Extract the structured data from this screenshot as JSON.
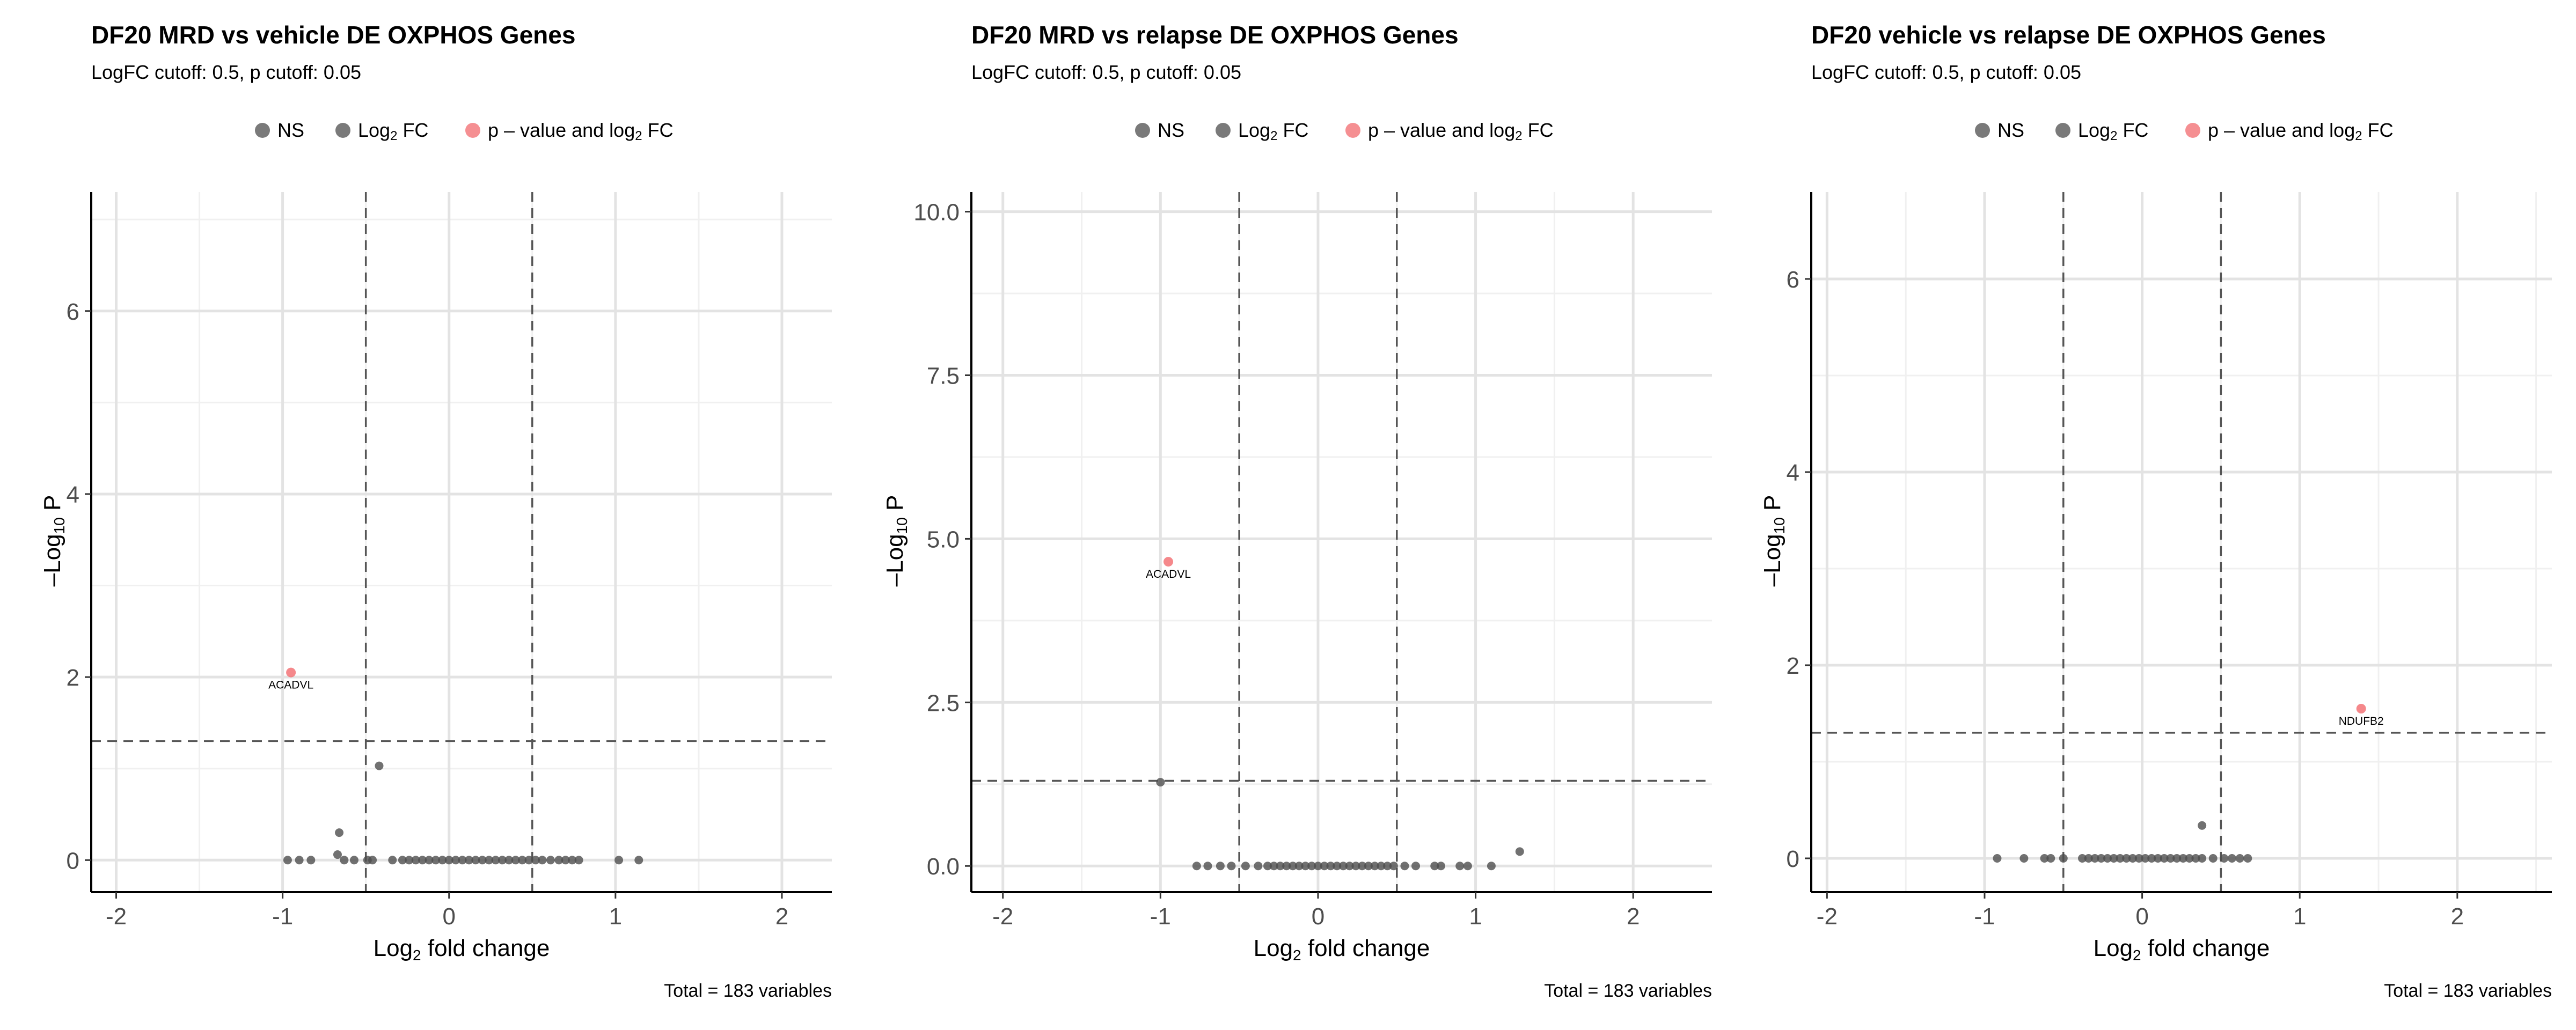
{
  "legend_items": [
    {
      "label": "NS",
      "color": "#4d4d4d"
    },
    {
      "label_prefix": "Log",
      "label_sub": "2",
      "label_suffix": " FC",
      "color": "#4d4d4d"
    },
    {
      "label_prefix": "p – value and log",
      "label_sub": "2",
      "label_suffix": " FC",
      "color": "#f26a6e"
    }
  ],
  "axis_labels": {
    "x_prefix": "Log",
    "x_sub": "2",
    "x_suffix": " fold change",
    "y_prefix": "–Log",
    "y_sub": "10",
    "y_suffix": " P"
  },
  "chart_data": [
    {
      "type": "scatter",
      "title": "DF20 MRD vs vehicle DE OXPHOS Genes",
      "subtitle": "LogFC cutoff: 0.5, p cutoff: 0.05",
      "caption": "Total = 183 variables",
      "xlim": [
        -2.15,
        2.3
      ],
      "ylim": [
        -0.35,
        7.3
      ],
      "xticks": [
        -2,
        -1,
        0,
        1,
        2
      ],
      "xtick_labels": [
        "-2",
        "-1",
        "0",
        "1",
        "2"
      ],
      "yticks": [
        0,
        2,
        4,
        6
      ],
      "ytick_labels": [
        "0",
        "2",
        "4",
        "6"
      ],
      "fc_cutoff": 0.5,
      "p_cutoff_neglog10": 1.301,
      "grid": true,
      "legend_position": "top",
      "points": [
        {
          "x": -0.95,
          "y": 2.05,
          "cls": "sig",
          "label": "ACADVL"
        },
        {
          "x": -0.42,
          "y": 1.03,
          "cls": "ns"
        },
        {
          "x": -0.66,
          "y": 0.3,
          "cls": "ns"
        },
        {
          "x": -0.67,
          "y": 0.06,
          "cls": "ns"
        },
        {
          "x": -0.97,
          "y": 0,
          "cls": "ns"
        },
        {
          "x": -0.9,
          "y": 0,
          "cls": "ns"
        },
        {
          "x": -0.83,
          "y": 0,
          "cls": "ns"
        },
        {
          "x": -0.63,
          "y": 0,
          "cls": "ns"
        },
        {
          "x": -0.57,
          "y": 0,
          "cls": "ns"
        },
        {
          "x": -0.49,
          "y": 0,
          "cls": "ns"
        },
        {
          "x": -0.46,
          "y": 0,
          "cls": "ns"
        },
        {
          "x": -0.34,
          "y": 0,
          "cls": "ns"
        },
        {
          "x": -0.28,
          "y": 0,
          "cls": "ns"
        },
        {
          "x": -0.24,
          "y": 0,
          "cls": "ns"
        },
        {
          "x": -0.2,
          "y": 0,
          "cls": "ns"
        },
        {
          "x": -0.16,
          "y": 0,
          "cls": "ns"
        },
        {
          "x": -0.12,
          "y": 0,
          "cls": "ns"
        },
        {
          "x": -0.08,
          "y": 0,
          "cls": "ns"
        },
        {
          "x": -0.04,
          "y": 0,
          "cls": "ns"
        },
        {
          "x": 0,
          "y": 0,
          "cls": "ns"
        },
        {
          "x": 0.04,
          "y": 0,
          "cls": "ns"
        },
        {
          "x": 0.08,
          "y": 0,
          "cls": "ns"
        },
        {
          "x": 0.12,
          "y": 0,
          "cls": "ns"
        },
        {
          "x": 0.16,
          "y": 0,
          "cls": "ns"
        },
        {
          "x": 0.2,
          "y": 0,
          "cls": "ns"
        },
        {
          "x": 0.24,
          "y": 0,
          "cls": "ns"
        },
        {
          "x": 0.28,
          "y": 0,
          "cls": "ns"
        },
        {
          "x": 0.32,
          "y": 0,
          "cls": "ns"
        },
        {
          "x": 0.36,
          "y": 0,
          "cls": "ns"
        },
        {
          "x": 0.4,
          "y": 0,
          "cls": "ns"
        },
        {
          "x": 0.44,
          "y": 0,
          "cls": "ns"
        },
        {
          "x": 0.48,
          "y": 0,
          "cls": "ns"
        },
        {
          "x": 0.52,
          "y": 0,
          "cls": "ns"
        },
        {
          "x": 0.56,
          "y": 0,
          "cls": "ns"
        },
        {
          "x": 0.61,
          "y": 0,
          "cls": "ns"
        },
        {
          "x": 0.66,
          "y": 0,
          "cls": "ns"
        },
        {
          "x": 0.7,
          "y": 0,
          "cls": "ns"
        },
        {
          "x": 0.74,
          "y": 0,
          "cls": "ns"
        },
        {
          "x": 0.78,
          "y": 0,
          "cls": "ns"
        },
        {
          "x": 1.02,
          "y": 0,
          "cls": "ns"
        },
        {
          "x": 1.14,
          "y": 0,
          "cls": "ns"
        }
      ]
    },
    {
      "type": "scatter",
      "title": "DF20 MRD vs relapse DE OXPHOS Genes",
      "subtitle": "LogFC cutoff: 0.5, p cutoff: 0.05",
      "caption": "Total = 183 variables",
      "xlim": [
        -2.2,
        2.5
      ],
      "ylim": [
        -0.4,
        10.3
      ],
      "xticks": [
        -2,
        -1,
        0,
        1,
        2
      ],
      "xtick_labels": [
        "-2",
        "-1",
        "0",
        "1",
        "2"
      ],
      "yticks": [
        0,
        2.5,
        5,
        7.5,
        10
      ],
      "ytick_labels": [
        "0.0",
        "2.5",
        "5.0",
        "7.5",
        "10.0"
      ],
      "fc_cutoff": 0.5,
      "p_cutoff_neglog10": 1.301,
      "grid": true,
      "legend_position": "top",
      "points": [
        {
          "x": -0.95,
          "y": 4.65,
          "cls": "sig",
          "label": "ACADVL"
        },
        {
          "x": -1.0,
          "y": 1.28,
          "cls": "ns"
        },
        {
          "x": 1.28,
          "y": 0.22,
          "cls": "ns"
        },
        {
          "x": -0.77,
          "y": 0,
          "cls": "ns"
        },
        {
          "x": -0.7,
          "y": 0,
          "cls": "ns"
        },
        {
          "x": -0.62,
          "y": 0,
          "cls": "ns"
        },
        {
          "x": -0.55,
          "y": 0,
          "cls": "ns"
        },
        {
          "x": -0.46,
          "y": 0,
          "cls": "ns"
        },
        {
          "x": -0.38,
          "y": 0,
          "cls": "ns"
        },
        {
          "x": -0.32,
          "y": 0,
          "cls": "ns"
        },
        {
          "x": -0.28,
          "y": 0,
          "cls": "ns"
        },
        {
          "x": -0.24,
          "y": 0,
          "cls": "ns"
        },
        {
          "x": -0.2,
          "y": 0,
          "cls": "ns"
        },
        {
          "x": -0.16,
          "y": 0,
          "cls": "ns"
        },
        {
          "x": -0.12,
          "y": 0,
          "cls": "ns"
        },
        {
          "x": -0.08,
          "y": 0,
          "cls": "ns"
        },
        {
          "x": -0.04,
          "y": 0,
          "cls": "ns"
        },
        {
          "x": 0,
          "y": 0,
          "cls": "ns"
        },
        {
          "x": 0.04,
          "y": 0,
          "cls": "ns"
        },
        {
          "x": 0.08,
          "y": 0,
          "cls": "ns"
        },
        {
          "x": 0.12,
          "y": 0,
          "cls": "ns"
        },
        {
          "x": 0.16,
          "y": 0,
          "cls": "ns"
        },
        {
          "x": 0.2,
          "y": 0,
          "cls": "ns"
        },
        {
          "x": 0.24,
          "y": 0,
          "cls": "ns"
        },
        {
          "x": 0.28,
          "y": 0,
          "cls": "ns"
        },
        {
          "x": 0.32,
          "y": 0,
          "cls": "ns"
        },
        {
          "x": 0.36,
          "y": 0,
          "cls": "ns"
        },
        {
          "x": 0.4,
          "y": 0,
          "cls": "ns"
        },
        {
          "x": 0.44,
          "y": 0,
          "cls": "ns"
        },
        {
          "x": 0.48,
          "y": 0,
          "cls": "ns"
        },
        {
          "x": 0.55,
          "y": 0,
          "cls": "ns"
        },
        {
          "x": 0.62,
          "y": 0,
          "cls": "ns"
        },
        {
          "x": 0.74,
          "y": 0,
          "cls": "ns"
        },
        {
          "x": 0.78,
          "y": 0,
          "cls": "ns"
        },
        {
          "x": 0.9,
          "y": 0,
          "cls": "ns"
        },
        {
          "x": 0.95,
          "y": 0,
          "cls": "ns"
        },
        {
          "x": 1.1,
          "y": 0,
          "cls": "ns"
        }
      ]
    },
    {
      "type": "scatter",
      "title": "DF20 vehicle vs relapse DE OXPHOS Genes",
      "subtitle": "LogFC cutoff: 0.5, p cutoff: 0.05",
      "caption": "Total = 183 variables",
      "xlim": [
        -2.1,
        2.6
      ],
      "ylim": [
        -0.35,
        6.9
      ],
      "xticks": [
        -2,
        -1,
        0,
        1,
        2
      ],
      "xtick_labels": [
        "-2",
        "-1",
        "0",
        "1",
        "2"
      ],
      "yticks": [
        0,
        2,
        4,
        6
      ],
      "ytick_labels": [
        "0",
        "2",
        "4",
        "6"
      ],
      "fc_cutoff": 0.5,
      "p_cutoff_neglog10": 1.301,
      "grid": true,
      "legend_position": "top",
      "points": [
        {
          "x": 1.39,
          "y": 1.55,
          "cls": "sig",
          "label": "NDUFB2"
        },
        {
          "x": 0.38,
          "y": 0.34,
          "cls": "ns"
        },
        {
          "x": -0.92,
          "y": 0,
          "cls": "ns"
        },
        {
          "x": -0.75,
          "y": 0,
          "cls": "ns"
        },
        {
          "x": -0.62,
          "y": 0,
          "cls": "ns"
        },
        {
          "x": -0.58,
          "y": 0,
          "cls": "ns"
        },
        {
          "x": -0.5,
          "y": 0,
          "cls": "ns"
        },
        {
          "x": -0.38,
          "y": 0,
          "cls": "ns"
        },
        {
          "x": -0.34,
          "y": 0,
          "cls": "ns"
        },
        {
          "x": -0.3,
          "y": 0,
          "cls": "ns"
        },
        {
          "x": -0.26,
          "y": 0,
          "cls": "ns"
        },
        {
          "x": -0.22,
          "y": 0,
          "cls": "ns"
        },
        {
          "x": -0.18,
          "y": 0,
          "cls": "ns"
        },
        {
          "x": -0.14,
          "y": 0,
          "cls": "ns"
        },
        {
          "x": -0.1,
          "y": 0,
          "cls": "ns"
        },
        {
          "x": -0.06,
          "y": 0,
          "cls": "ns"
        },
        {
          "x": -0.02,
          "y": 0,
          "cls": "ns"
        },
        {
          "x": 0.02,
          "y": 0,
          "cls": "ns"
        },
        {
          "x": 0.06,
          "y": 0,
          "cls": "ns"
        },
        {
          "x": 0.1,
          "y": 0,
          "cls": "ns"
        },
        {
          "x": 0.14,
          "y": 0,
          "cls": "ns"
        },
        {
          "x": 0.18,
          "y": 0,
          "cls": "ns"
        },
        {
          "x": 0.22,
          "y": 0,
          "cls": "ns"
        },
        {
          "x": 0.26,
          "y": 0,
          "cls": "ns"
        },
        {
          "x": 0.3,
          "y": 0,
          "cls": "ns"
        },
        {
          "x": 0.34,
          "y": 0,
          "cls": "ns"
        },
        {
          "x": 0.38,
          "y": 0,
          "cls": "ns"
        },
        {
          "x": 0.45,
          "y": 0,
          "cls": "ns"
        },
        {
          "x": 0.52,
          "y": 0,
          "cls": "ns"
        },
        {
          "x": 0.57,
          "y": 0,
          "cls": "ns"
        },
        {
          "x": 0.62,
          "y": 0,
          "cls": "ns"
        },
        {
          "x": 0.67,
          "y": 0,
          "cls": "ns"
        }
      ]
    }
  ],
  "colors": {
    "ns_point": "#4d4d4d",
    "sig_point": "#f26a6e",
    "grid_major": "#e3e3e3",
    "grid_minor": "#f0f0f0",
    "cutoff_line": "#555555",
    "axis_line": "#000000"
  }
}
